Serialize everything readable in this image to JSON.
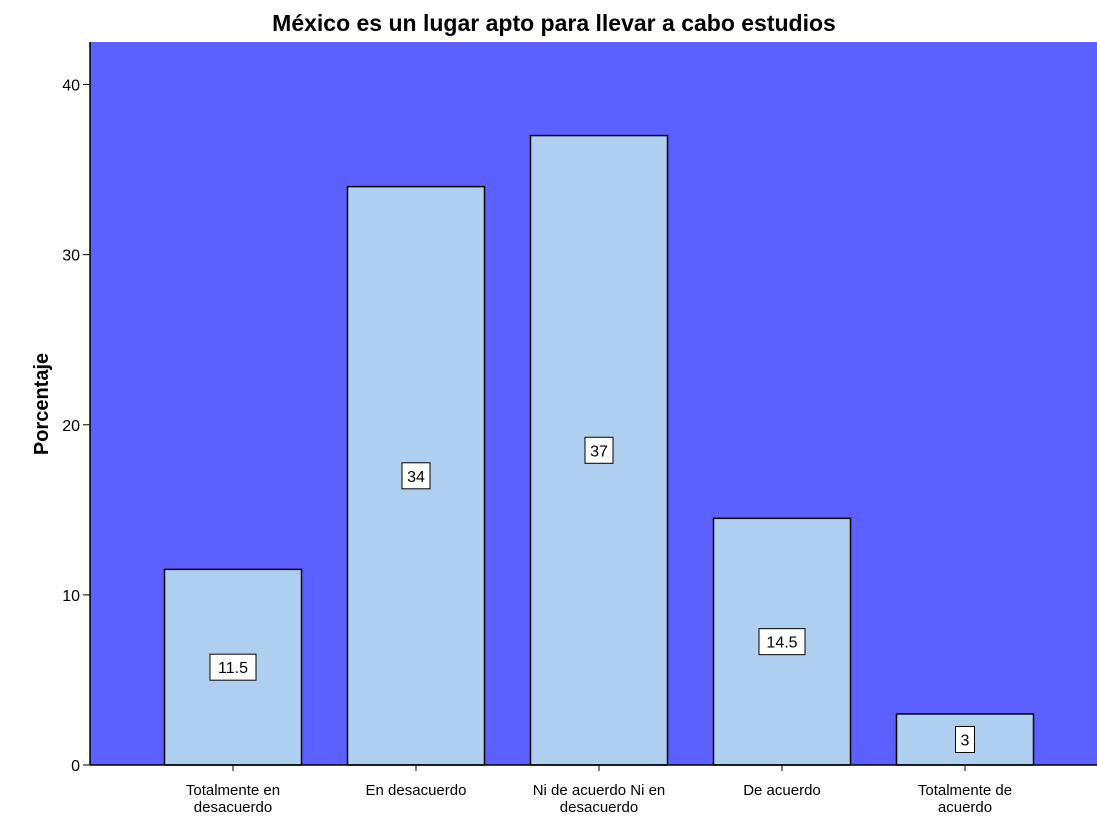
{
  "chart_data": {
    "type": "bar",
    "title": "México  es un lugar apto  para llevar a cabo estudios",
    "xlabel": "",
    "ylabel": "Porcentaje",
    "categories": [
      [
        "Totalmente en",
        "desacuerdo"
      ],
      [
        "En desacuerdo"
      ],
      [
        "Ni de acuerdo Ni en",
        "desacuerdo"
      ],
      [
        "De acuerdo"
      ],
      [
        "Totalmente de",
        "acuerdo"
      ]
    ],
    "values": [
      11.5,
      34,
      37,
      14.5,
      3
    ],
    "data_labels": [
      "11.5",
      "34",
      "37",
      "14.5",
      "3"
    ],
    "ylim": [
      0,
      42.5
    ],
    "yticks": [
      0,
      10,
      20,
      30,
      40
    ],
    "grid": false,
    "colors": {
      "plot_background": "#5b60ff",
      "bar_fill": "#aecfef",
      "bar_stroke": "#000000",
      "label_box": "#ffffff"
    }
  }
}
